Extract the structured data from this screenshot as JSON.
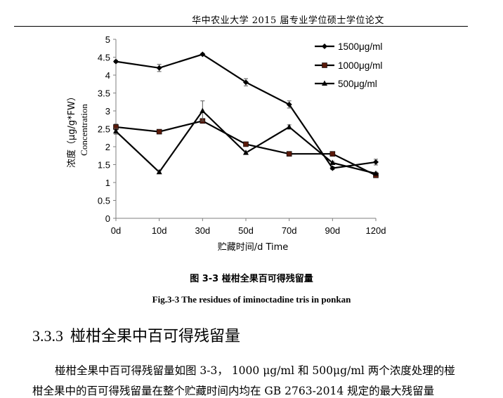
{
  "page": {
    "running_header": "华中农业大学 2015 届专业学位硕士学位论文"
  },
  "figure": {
    "caption_cn": "图 3-3  椪柑全果百可得残留量",
    "caption_en": "Fig.3-3 The residues of iminoctadine tris in ponkan"
  },
  "section": {
    "number": "3.3.3",
    "title": "椪柑全果中百可得残留量"
  },
  "body_text": {
    "line1": "椪柑全果中百可得残留量如图 3-3， 1000 μg/ml 和 500μg/ml 两个浓度处理的椪",
    "line2": "柑全果中的百可得残留量在整个贮藏时间内均在 GB 2763-2014 规定的最大残留量"
  },
  "chart_data": {
    "type": "line",
    "categories": [
      "0d",
      "10d",
      "30d",
      "50d",
      "70d",
      "90d",
      "120d"
    ],
    "ylabel_cn": "浓度（μg/g*FW）",
    "ylabel_en": "Concentration",
    "xlabel": "贮藏时间/d Time",
    "ylim": [
      0,
      5
    ],
    "yticks": [
      "0",
      "0.5",
      "1",
      "1.5",
      "2",
      "2.5",
      "3",
      "3.5",
      "4",
      "4.5",
      "5"
    ],
    "legend_position": "top-right",
    "grid": false,
    "series": [
      {
        "name": "1500μg/ml",
        "marker": "diamond",
        "values": [
          4.38,
          4.2,
          4.58,
          3.8,
          3.18,
          1.4,
          1.57
        ],
        "errors": [
          0.03,
          0.1,
          0.03,
          0.1,
          0.1,
          0.04,
          0.08
        ]
      },
      {
        "name": "1000μg/ml",
        "marker": "square",
        "values": [
          2.55,
          2.42,
          2.72,
          2.07,
          1.8,
          1.8,
          1.2
        ],
        "errors": [
          0.08,
          0.03,
          0.05,
          0.03,
          0.03,
          0.03,
          0.05
        ]
      },
      {
        "name": "500μg/ml",
        "marker": "triangle",
        "values": [
          2.43,
          1.29,
          3.0,
          1.83,
          2.55,
          1.55,
          1.25
        ],
        "errors": [
          0.08,
          0.03,
          0.28,
          0.03,
          0.06,
          0.04,
          0.04
        ]
      }
    ],
    "colors": {
      "line": "#000000",
      "marker_fill_1000": "#5a1a0a"
    }
  }
}
